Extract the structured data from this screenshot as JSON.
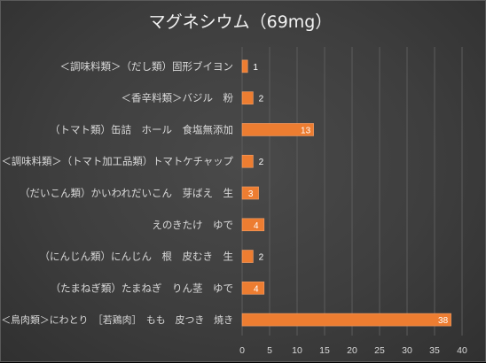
{
  "chart_data": {
    "type": "bar",
    "orientation": "horizontal",
    "title": "マグネシウム（69mg）",
    "categories": [
      "＜調味料類＞（だし類）固形ブイヨン",
      "＜香辛料類＞バジル　粉",
      "（トマト類）缶詰　ホール　食塩無添加",
      "＜調味料類＞（トマト加工品類）トマトケチャップ",
      "（だいこん類）かいわれだいこん　芽ばえ　生",
      "えのきたけ　ゆで",
      "（にんじん類）にんじん　根　皮むき　生",
      "（たまねぎ類）たまねぎ　りん茎　ゆで",
      "＜鳥肉類＞にわとり　［若鶏肉］　もも　皮つき　焼き"
    ],
    "values": [
      1,
      2,
      13,
      2,
      3,
      4,
      2,
      4,
      38
    ],
    "xlim": [
      0,
      40
    ],
    "xticks": [
      "0",
      "5",
      "10",
      "15",
      "20",
      "25",
      "30",
      "35",
      "40"
    ],
    "xlabel": "",
    "ylabel": "",
    "grid": "vertical",
    "legend": "none",
    "colors": {
      "bar_fill": "#ED7D31",
      "bar_edge": "#f4a06a",
      "background": "#404040",
      "text": "#d9d9d9"
    }
  }
}
